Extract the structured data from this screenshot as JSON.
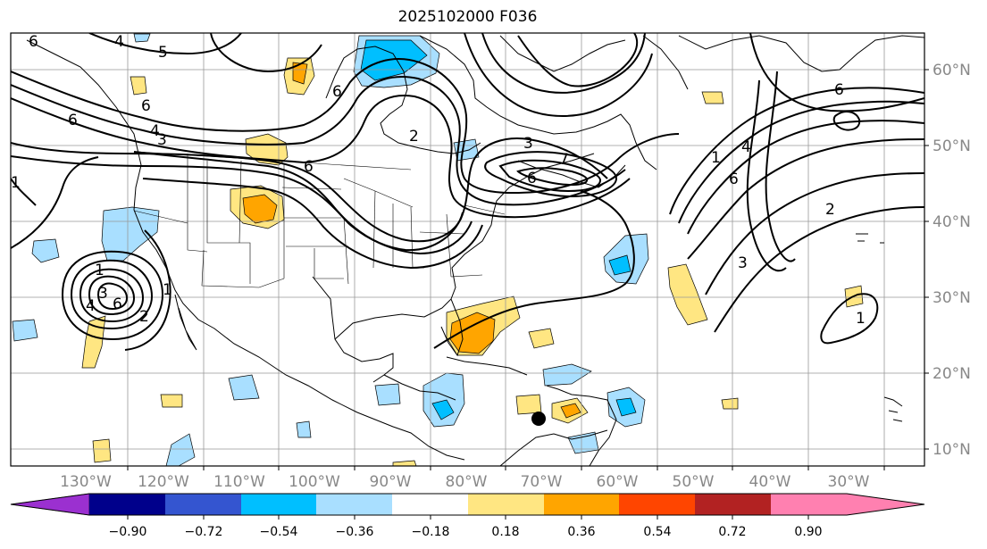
{
  "map": {
    "title": "2025102000 F036",
    "lon_ticks": [
      "130°W",
      "120°W",
      "110°W",
      "100°W",
      "90°W",
      "80°W",
      "70°W",
      "60°W",
      "50°W",
      "40°W",
      "30°W"
    ],
    "lat_ticks": [
      "60°N",
      "50°N",
      "40°N",
      "30°N",
      "20°N",
      "10°N"
    ],
    "contour_labels": [
      "6",
      "4",
      "5",
      "6",
      "4",
      "3",
      "1",
      "6",
      "6",
      "6",
      "2",
      "3",
      "7",
      "6",
      "1",
      "1",
      "4",
      "6",
      "2",
      "3",
      "4",
      "6",
      "3",
      "2",
      "6",
      "1",
      "1"
    ],
    "colorbar": {
      "tick_labels": [
        "−0.90",
        "−0.72",
        "−0.54",
        "−0.36",
        "−0.18",
        "0.18",
        "0.36",
        "0.54",
        "0.72",
        "0.90"
      ],
      "colors": [
        "#9b30d0",
        "#00008b",
        "#3455d0",
        "#00bfff",
        "#a9dfff",
        "#ffffff",
        "#ffe682",
        "#ffa500",
        "#ff4500",
        "#b22222",
        "#ff80b0"
      ]
    }
  }
}
